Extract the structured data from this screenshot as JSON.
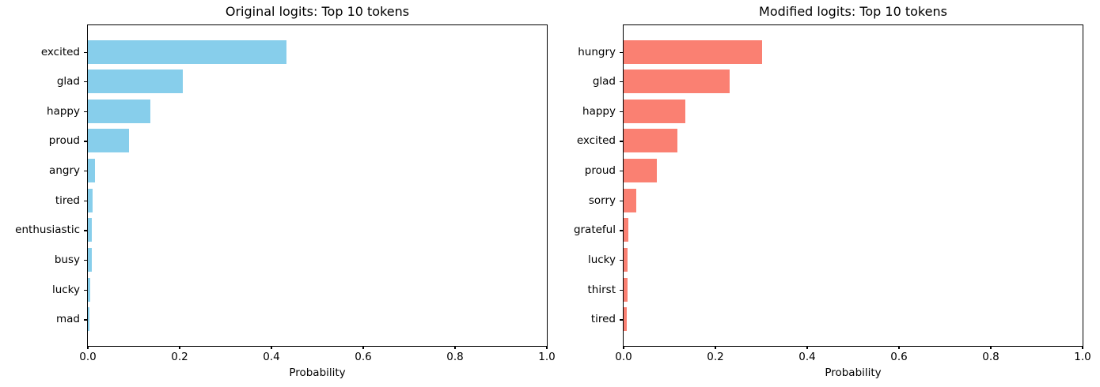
{
  "figure": {
    "background": "#ffffff",
    "text_color": "#000000"
  },
  "chart_data": [
    {
      "type": "bar",
      "orientation": "horizontal",
      "title": "Original logits: Top 10 tokens",
      "xlabel": "Probability",
      "ylabel": "",
      "xlim": [
        0.0,
        1.0
      ],
      "xtick_labels": [
        "0.0",
        "0.2",
        "0.4",
        "0.6",
        "0.8",
        "1.0"
      ],
      "grid": false,
      "legend": "none",
      "bar_color": "#87CEEB",
      "categories": [
        "excited",
        "glad",
        "happy",
        "proud",
        "angry",
        "tired",
        "enthusiastic",
        "busy",
        "lucky",
        "mad"
      ],
      "values": [
        0.433,
        0.207,
        0.136,
        0.09,
        0.015,
        0.01,
        0.009,
        0.009,
        0.006,
        0.004
      ]
    },
    {
      "type": "bar",
      "orientation": "horizontal",
      "title": "Modified logits: Top 10 tokens",
      "xlabel": "Probability",
      "ylabel": "",
      "xlim": [
        0.0,
        1.0
      ],
      "xtick_labels": [
        "0.0",
        "0.2",
        "0.4",
        "0.6",
        "0.8",
        "1.0"
      ],
      "grid": false,
      "legend": "none",
      "bar_color": "#FA8072",
      "categories": [
        "hungry",
        "glad",
        "happy",
        "excited",
        "proud",
        "sorry",
        "grateful",
        "lucky",
        "thirst",
        "tired"
      ],
      "values": [
        0.302,
        0.231,
        0.135,
        0.117,
        0.073,
        0.027,
        0.01,
        0.009,
        0.008,
        0.007
      ]
    }
  ]
}
